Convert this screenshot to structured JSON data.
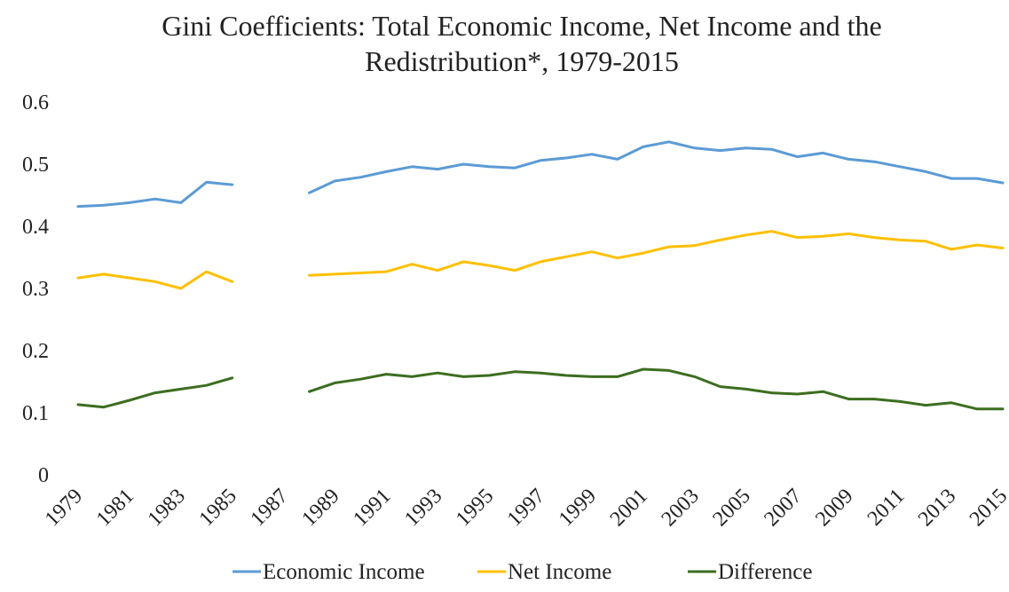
{
  "chart_data": {
    "type": "line",
    "title_line1": "Gini  Coefficients: Total Economic Income, Net Income and the",
    "title_line2": "Redistribution*, 1979-2015",
    "xlabel": "",
    "ylabel": "",
    "ylim": [
      0,
      0.6
    ],
    "yticks": [
      "0",
      "0.1",
      "0.2",
      "0.3",
      "0.4",
      "0.5",
      "0.6"
    ],
    "x": [
      1979,
      1980,
      1981,
      1982,
      1983,
      1984,
      1985,
      1986,
      1987,
      1988,
      1989,
      1990,
      1991,
      1992,
      1993,
      1994,
      1995,
      1996,
      1997,
      1998,
      1999,
      2000,
      2001,
      2002,
      2003,
      2004,
      2005,
      2006,
      2007,
      2008,
      2009,
      2010,
      2011,
      2012,
      2013,
      2014,
      2015
    ],
    "xticks": [
      "1979",
      "1981",
      "1983",
      "1985",
      "1987",
      "1989",
      "1991",
      "1993",
      "1995",
      "1997",
      "1999",
      "2001",
      "2003",
      "2005",
      "2007",
      "2009",
      "2011",
      "2013",
      "2015"
    ],
    "grid": false,
    "legend": "bottom",
    "series": [
      {
        "name": "Economic Income",
        "color": "#5B9BD5",
        "values": [
          0.432,
          0.434,
          0.438,
          0.444,
          0.438,
          0.471,
          0.467,
          null,
          null,
          0.454,
          0.473,
          0.479,
          0.488,
          0.496,
          0.492,
          0.5,
          0.496,
          0.494,
          0.506,
          0.51,
          0.516,
          0.508,
          0.528,
          0.536,
          0.526,
          0.522,
          0.526,
          0.524,
          0.512,
          0.518,
          0.508,
          0.504,
          0.496,
          0.488,
          0.477,
          0.477,
          0.47
        ]
      },
      {
        "name": "Net Income",
        "color": "#FFC000",
        "values": [
          0.317,
          0.323,
          0.317,
          0.311,
          0.3,
          0.327,
          0.311,
          null,
          null,
          0.321,
          0.323,
          0.325,
          0.327,
          0.339,
          0.329,
          0.343,
          0.337,
          0.329,
          0.343,
          0.351,
          0.359,
          0.349,
          0.357,
          0.367,
          0.369,
          0.378,
          0.386,
          0.392,
          0.382,
          0.384,
          0.388,
          0.382,
          0.378,
          0.376,
          0.363,
          0.37,
          0.365
        ]
      },
      {
        "name": "Difference",
        "color": "#3C6E1F",
        "values": [
          0.113,
          0.109,
          0.12,
          0.132,
          0.138,
          0.144,
          0.156,
          null,
          null,
          0.134,
          0.148,
          0.154,
          0.162,
          0.158,
          0.164,
          0.158,
          0.16,
          0.166,
          0.164,
          0.16,
          0.158,
          0.158,
          0.17,
          0.168,
          0.158,
          0.142,
          0.138,
          0.132,
          0.13,
          0.134,
          0.122,
          0.122,
          0.118,
          0.112,
          0.116,
          0.106,
          0.106
        ]
      }
    ]
  }
}
